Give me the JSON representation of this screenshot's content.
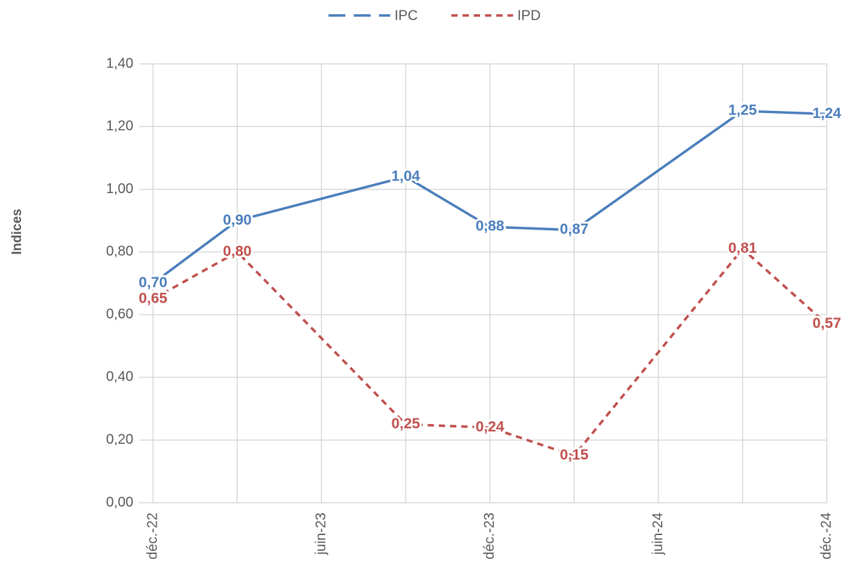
{
  "chart_data": {
    "type": "line",
    "y_label": "Indices",
    "x": [
      "2022-12",
      "2023-03",
      "2023-09",
      "2023-12",
      "2024-03",
      "2024-09",
      "2024-12"
    ],
    "xlim": [
      "2022-12",
      "2024-12"
    ],
    "xticks": [
      {
        "value": "2022-12",
        "label": "déc.-22"
      },
      {
        "value": "2023-06",
        "label": "juin-23"
      },
      {
        "value": "2023-12",
        "label": "déc.-23"
      },
      {
        "value": "2024-06",
        "label": "juin-24"
      },
      {
        "value": "2024-12",
        "label": "déc.-24"
      }
    ],
    "ylim": [
      0,
      1.4
    ],
    "yticks": [
      {
        "value": 0,
        "label": "0,00"
      },
      {
        "value": 0.2,
        "label": "0,20"
      },
      {
        "value": 0.4,
        "label": "0,40"
      },
      {
        "value": 0.6,
        "label": "0,60"
      },
      {
        "value": 0.8,
        "label": "0,80"
      },
      {
        "value": 1.0,
        "label": "1,00"
      },
      {
        "value": 1.2,
        "label": "1,20"
      },
      {
        "value": 1.4,
        "label": "1,40"
      }
    ],
    "grid": true,
    "legend": "top",
    "series": [
      {
        "name": "IPC",
        "color": "#4a7ebb",
        "style": "solid",
        "values": [
          0.7,
          0.9,
          1.04,
          0.88,
          0.87,
          1.25,
          1.24
        ],
        "value_labels": [
          "0,70",
          "0,90",
          "1,04",
          "0,88",
          "0,87",
          "1,25",
          "1,24"
        ]
      },
      {
        "name": "IPD",
        "color": "#c0504d",
        "style": "dashed",
        "values": [
          0.65,
          0.8,
          0.25,
          0.24,
          0.15,
          0.81,
          0.57
        ],
        "value_labels": [
          "0,65",
          "0,80",
          "0,25",
          "0,24",
          "0,15",
          "0,81",
          "0,57"
        ]
      }
    ]
  }
}
